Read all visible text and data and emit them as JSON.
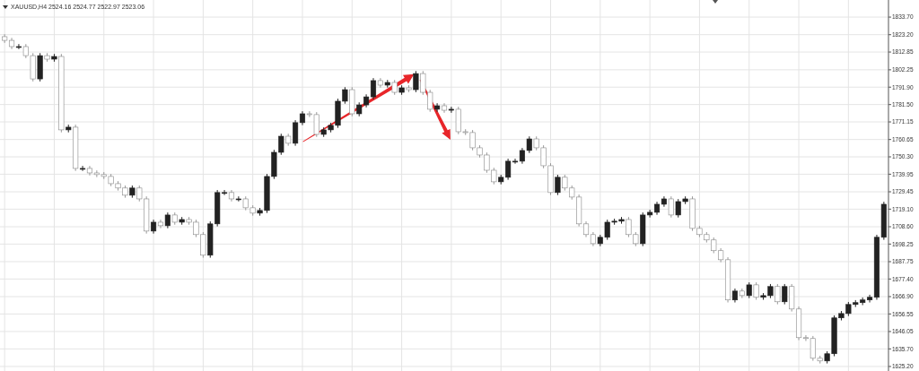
{
  "chart_data": {
    "type": "candlestick",
    "title": "XAUUSD,H4 2524.16 2524.77 2522.97 2523.06",
    "grid": true,
    "ylim": [
      1622.5,
      1843.9
    ],
    "yticks": [
      {
        "value": 1833.7,
        "label": "1833.70"
      },
      {
        "value": 1823.2,
        "label": "1823.20"
      },
      1812.85,
      1802.25,
      {
        "value": 1791.9,
        "label": "1791.90"
      },
      {
        "value": 1781.5,
        "label": "1781.50"
      },
      1771.15,
      1760.65,
      {
        "value": 1750.3,
        "label": "1750.30"
      },
      1739.95,
      1729.45,
      {
        "value": 1719.1,
        "label": "1719.10"
      },
      {
        "value": 1708.6,
        "label": "1708.60"
      },
      1698.25,
      1687.75,
      {
        "value": 1677.4,
        "label": "1677.40"
      },
      {
        "value": 1666.9,
        "label": "1666.90"
      },
      1656.55,
      1646.05,
      {
        "value": 1635.7,
        "label": "1635.70"
      },
      {
        "value": 1625.2,
        "label": "1625.20"
      }
    ],
    "categories": [
      null,
      null,
      null,
      null,
      null,
      null,
      null,
      null,
      null,
      null,
      null,
      null,
      null,
      null,
      null,
      null,
      null,
      null,
      null,
      null,
      null,
      null,
      null,
      null,
      null,
      null,
      null,
      null,
      null,
      null,
      null,
      null,
      null,
      null,
      null,
      null,
      null,
      null,
      null,
      null,
      null,
      null,
      null,
      null,
      null,
      null,
      null,
      null,
      null,
      null,
      null,
      null,
      null,
      null,
      null,
      null,
      null,
      null,
      null,
      null,
      null,
      null,
      null,
      null,
      null,
      null,
      null,
      null,
      null,
      null,
      null,
      null,
      null,
      null,
      null,
      null,
      null,
      null,
      null,
      null,
      null,
      null,
      null,
      null,
      null,
      null,
      null,
      null,
      null,
      null,
      null,
      null,
      null,
      null,
      null,
      null,
      null,
      null,
      null,
      null,
      null,
      null,
      null,
      null,
      null,
      null,
      null,
      null,
      null,
      null,
      null,
      null,
      null,
      null,
      null,
      null,
      null,
      null,
      null,
      null,
      null,
      null,
      null,
      null,
      null
    ],
    "ohlc": [
      [
        1822.0,
        1823.5,
        1818.3,
        1819.8
      ],
      [
        1819.8,
        1821.3,
        1814.6,
        1816.1
      ],
      [
        1816.1,
        1817.6,
        1814.6,
        1816.1
      ],
      [
        1816.1,
        1817.6,
        1809.2,
        1810.7
      ],
      [
        1810.7,
        1812.2,
        1795.3,
        1796.8
      ],
      [
        1796.8,
        1812.2,
        1795.3,
        1810.7
      ],
      [
        1810.7,
        1812.2,
        1807.1,
        1808.6
      ],
      [
        1808.6,
        1811.7,
        1807.1,
        1810.2
      ],
      [
        1810.2,
        1811.7,
        1764.9,
        1766.4
      ],
      [
        1766.4,
        1769.5,
        1764.9,
        1768.0
      ],
      [
        1768.0,
        1769.5,
        1741.9,
        1743.4
      ],
      [
        1743.4,
        1744.9,
        1741.9,
        1743.4
      ],
      [
        1743.4,
        1744.9,
        1739.2,
        1740.7
      ],
      [
        1740.7,
        1742.2,
        1738.2,
        1739.7
      ],
      [
        1739.7,
        1741.2,
        1737.1,
        1738.6
      ],
      [
        1738.6,
        1740.1,
        1732.8,
        1734.3
      ],
      [
        1734.3,
        1735.8,
        1730.2,
        1731.7
      ],
      [
        1731.7,
        1733.2,
        1725.9,
        1727.4
      ],
      [
        1727.4,
        1733.2,
        1725.9,
        1731.7
      ],
      [
        1731.7,
        1733.2,
        1723.7,
        1725.2
      ],
      [
        1725.2,
        1726.7,
        1704.5,
        1706.0
      ],
      [
        1706.0,
        1712.8,
        1704.5,
        1711.3
      ],
      [
        1711.3,
        1712.8,
        1707.7,
        1709.2
      ],
      [
        1709.2,
        1717.1,
        1707.7,
        1715.6
      ],
      [
        1715.6,
        1717.1,
        1709.8,
        1711.3
      ],
      [
        1711.3,
        1714.4,
        1709.8,
        1712.9
      ],
      [
        1712.9,
        1714.4,
        1709.8,
        1711.3
      ],
      [
        1711.3,
        1712.8,
        1702.4,
        1703.9
      ],
      [
        1703.9,
        1705.4,
        1690.1,
        1691.6
      ],
      [
        1691.6,
        1711.8,
        1690.1,
        1710.3
      ],
      [
        1710.3,
        1730.5,
        1708.8,
        1729.0
      ],
      [
        1729.0,
        1730.5,
        1727.5,
        1729.0
      ],
      [
        1729.0,
        1730.5,
        1723.7,
        1725.2
      ],
      [
        1725.2,
        1726.7,
        1723.7,
        1725.2
      ],
      [
        1725.2,
        1726.7,
        1718.4,
        1719.9
      ],
      [
        1719.9,
        1721.4,
        1715.2,
        1716.7
      ],
      [
        1716.7,
        1719.8,
        1715.2,
        1718.3
      ],
      [
        1718.3,
        1740.1,
        1716.8,
        1738.6
      ],
      [
        1738.6,
        1754.5,
        1737.1,
        1753.0
      ],
      [
        1753.0,
        1764.1,
        1751.5,
        1762.6
      ],
      [
        1762.6,
        1764.1,
        1756.9,
        1758.4
      ],
      [
        1758.4,
        1772.2,
        1756.9,
        1770.7
      ],
      [
        1770.7,
        1777.5,
        1769.2,
        1776.0
      ],
      [
        1776.0,
        1777.5,
        1774.0,
        1775.5
      ],
      [
        1775.5,
        1777.0,
        1762.2,
        1763.7
      ],
      [
        1763.7,
        1767.9,
        1762.2,
        1766.4
      ],
      [
        1766.4,
        1770.6,
        1764.9,
        1769.1
      ],
      [
        1769.1,
        1785.0,
        1767.6,
        1783.5
      ],
      [
        1783.5,
        1791.9,
        1782.0,
        1790.4
      ],
      [
        1790.4,
        1791.9,
        1774.5,
        1776.0
      ],
      [
        1776.0,
        1782.8,
        1774.5,
        1781.3
      ],
      [
        1781.3,
        1787.6,
        1779.8,
        1786.1
      ],
      [
        1786.1,
        1797.3,
        1784.6,
        1795.8
      ],
      [
        1795.8,
        1797.3,
        1791.6,
        1793.1
      ],
      [
        1793.1,
        1796.2,
        1791.6,
        1794.7
      ],
      [
        1794.7,
        1796.2,
        1787.3,
        1788.8
      ],
      [
        1788.8,
        1793.0,
        1787.3,
        1791.5
      ],
      [
        1791.5,
        1793.0,
        1788.9,
        1790.4
      ],
      [
        1790.4,
        1801.5,
        1788.9,
        1800.0
      ],
      [
        1800.0,
        1801.5,
        1787.3,
        1788.8
      ],
      [
        1788.8,
        1790.3,
        1777.2,
        1778.7
      ],
      [
        1778.7,
        1782.3,
        1777.2,
        1780.8
      ],
      [
        1780.8,
        1782.3,
        1776.6,
        1778.1
      ],
      [
        1778.1,
        1780.2,
        1776.6,
        1778.7
      ],
      [
        1778.7,
        1780.2,
        1763.8,
        1765.3
      ],
      [
        1765.3,
        1766.8,
        1763.3,
        1764.8
      ],
      [
        1764.8,
        1766.3,
        1754.2,
        1755.7
      ],
      [
        1755.7,
        1757.2,
        1749.9,
        1751.4
      ],
      [
        1751.4,
        1752.9,
        1740.8,
        1742.3
      ],
      [
        1742.3,
        1743.8,
        1733.9,
        1735.4
      ],
      [
        1735.4,
        1739.6,
        1733.9,
        1738.1
      ],
      [
        1738.1,
        1749.2,
        1736.6,
        1747.7
      ],
      [
        1747.7,
        1749.2,
        1746.2,
        1747.7
      ],
      [
        1747.7,
        1755.6,
        1746.2,
        1754.1
      ],
      [
        1754.1,
        1762.5,
        1752.6,
        1761.0
      ],
      [
        1761.0,
        1762.5,
        1754.2,
        1755.7
      ],
      [
        1755.7,
        1757.2,
        1743.5,
        1745.0
      ],
      [
        1745.0,
        1746.5,
        1727.5,
        1729.0
      ],
      [
        1729.0,
        1739.6,
        1727.5,
        1738.1
      ],
      [
        1738.1,
        1739.6,
        1730.2,
        1731.7
      ],
      [
        1731.7,
        1733.2,
        1724.8,
        1726.3
      ],
      [
        1726.3,
        1727.8,
        1708.8,
        1710.3
      ],
      [
        1710.3,
        1711.8,
        1702.4,
        1703.9
      ],
      [
        1703.9,
        1705.4,
        1697.0,
        1698.5
      ],
      [
        1698.5,
        1703.8,
        1697.0,
        1702.3
      ],
      [
        1702.3,
        1712.8,
        1700.8,
        1711.3
      ],
      [
        1711.3,
        1713.4,
        1709.8,
        1711.9
      ],
      [
        1711.9,
        1714.4,
        1710.4,
        1712.9
      ],
      [
        1712.9,
        1714.4,
        1702.4,
        1703.9
      ],
      [
        1703.9,
        1705.4,
        1697.0,
        1698.5
      ],
      [
        1698.5,
        1717.1,
        1697.0,
        1715.6
      ],
      [
        1715.6,
        1718.7,
        1714.1,
        1717.2
      ],
      [
        1717.2,
        1723.5,
        1715.7,
        1722.0
      ],
      [
        1722.0,
        1726.7,
        1720.5,
        1725.2
      ],
      [
        1725.2,
        1726.7,
        1714.1,
        1715.6
      ],
      [
        1715.6,
        1725.1,
        1714.1,
        1723.6
      ],
      [
        1723.6,
        1726.7,
        1722.1,
        1725.2
      ],
      [
        1725.2,
        1726.7,
        1706.1,
        1707.6
      ],
      [
        1707.6,
        1709.1,
        1702.4,
        1703.9
      ],
      [
        1703.9,
        1705.4,
        1699.2,
        1700.7
      ],
      [
        1700.7,
        1702.2,
        1692.8,
        1694.3
      ],
      [
        1694.3,
        1695.8,
        1687.4,
        1688.9
      ],
      [
        1688.9,
        1690.4,
        1663.4,
        1664.9
      ],
      [
        1664.9,
        1671.7,
        1663.4,
        1670.2
      ],
      [
        1670.2,
        1671.7,
        1666.0,
        1667.5
      ],
      [
        1667.5,
        1675.4,
        1666.0,
        1673.9
      ],
      [
        1673.9,
        1675.4,
        1665.0,
        1666.5
      ],
      [
        1666.5,
        1669.0,
        1665.0,
        1667.5
      ],
      [
        1667.5,
        1674.4,
        1666.0,
        1672.9
      ],
      [
        1672.9,
        1674.4,
        1662.3,
        1663.8
      ],
      [
        1663.8,
        1674.4,
        1662.3,
        1672.9
      ],
      [
        1672.9,
        1674.4,
        1658.0,
        1659.5
      ],
      [
        1659.5,
        1661.0,
        1640.9,
        1642.4
      ],
      [
        1642.4,
        1643.9,
        1640.4,
        1641.9
      ],
      [
        1641.9,
        1643.4,
        1628.6,
        1630.1
      ],
      [
        1630.1,
        1631.6,
        1627.0,
        1628.5
      ],
      [
        1628.5,
        1634.3,
        1627.0,
        1632.8
      ],
      [
        1632.8,
        1655.7,
        1631.3,
        1654.2
      ],
      [
        1654.2,
        1658.3,
        1652.7,
        1656.8
      ],
      [
        1656.8,
        1663.7,
        1655.3,
        1662.2
      ],
      [
        1662.2,
        1664.8,
        1660.7,
        1663.3
      ],
      [
        1663.3,
        1666.4,
        1661.8,
        1664.9
      ],
      [
        1664.9,
        1668.0,
        1663.4,
        1666.5
      ],
      [
        1666.5,
        1703.8,
        1665.0,
        1702.3
      ],
      [
        1702.3,
        1723.5,
        1700.8,
        1722.0
      ]
    ]
  }
}
